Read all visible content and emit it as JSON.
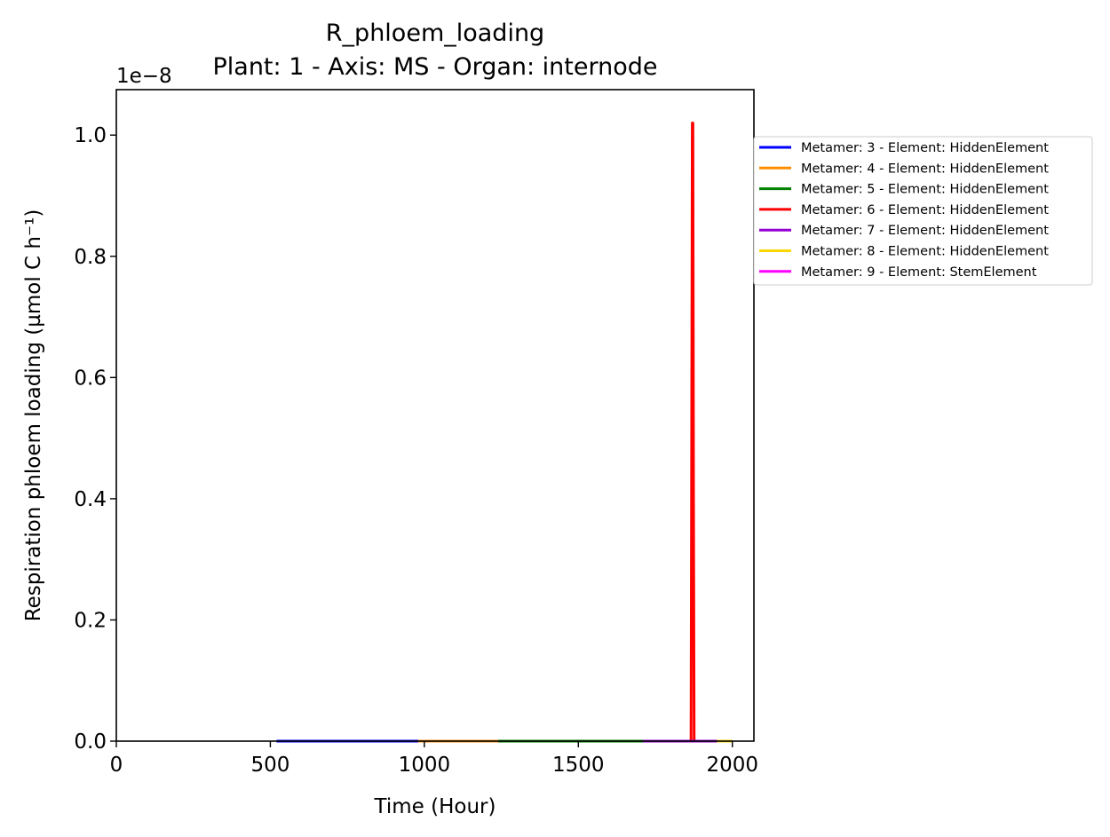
{
  "chart_data": {
    "type": "line",
    "title": "R_phloem_loading",
    "subtitle": "Plant: 1 - Axis: MS - Organ: internode",
    "xlabel": "Time (Hour)",
    "ylabel": "Respiration phloem loading (µmol C h⁻¹)",
    "y_offset_text": "1e−8",
    "xlim": [
      0,
      2070
    ],
    "ylim": [
      0,
      1.075
    ],
    "xticks": [
      0,
      500,
      1000,
      1500,
      2000
    ],
    "xtick_labels": [
      "0",
      "500",
      "1000",
      "1500",
      "2000"
    ],
    "yticks": [
      0.0,
      0.2,
      0.4,
      0.6,
      0.8,
      1.0
    ],
    "ytick_labels": [
      "0.0",
      "0.2",
      "0.4",
      "0.6",
      "0.8",
      "1.0"
    ],
    "grid": false,
    "legend_position": "outside right",
    "series": [
      {
        "name": "Metamer: 3 - Element: HiddenElement",
        "color": "#0000ff",
        "x": [
          520,
          980
        ],
        "y": [
          0.0,
          0.0
        ]
      },
      {
        "name": "Metamer: 4 - Element: HiddenElement",
        "color": "#ff8c00",
        "x": [
          980,
          1240
        ],
        "y": [
          0.0,
          0.0
        ]
      },
      {
        "name": "Metamer: 5 - Element: HiddenElement",
        "color": "#008000",
        "x": [
          1240,
          1710
        ],
        "y": [
          0.0,
          0.0
        ]
      },
      {
        "name": "Metamer: 6 - Element: HiddenElement",
        "color": "#ff0000",
        "x": [
          1710,
          1866,
          1868,
          1870,
          1872,
          1874,
          1876
        ],
        "y": [
          0.0,
          0.0,
          0.5,
          1.02,
          1.02,
          0.4,
          0.0
        ]
      },
      {
        "name": "Metamer: 7 - Element: HiddenElement",
        "color": "#9400d3",
        "x": [
          1710,
          1950
        ],
        "y": [
          0.0,
          0.0
        ]
      },
      {
        "name": "Metamer: 8 - Element: HiddenElement",
        "color": "#ffd700",
        "x": [
          1950,
          2000
        ],
        "y": [
          0.0,
          0.0
        ]
      },
      {
        "name": "Metamer: 9 - Element: StemElement",
        "color": "#ff00ff",
        "x": [],
        "y": []
      }
    ]
  }
}
